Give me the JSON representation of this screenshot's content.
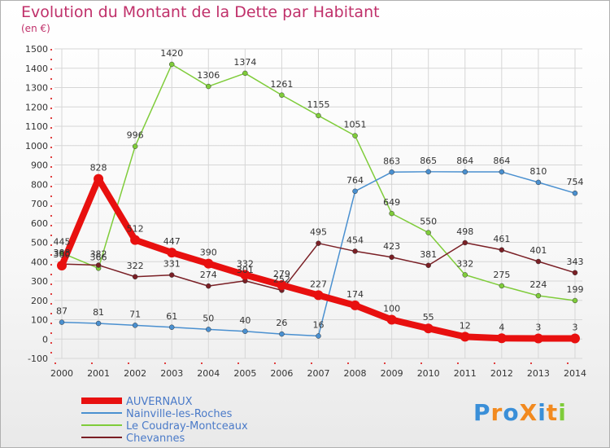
{
  "chart_data": {
    "type": "line",
    "title": "Evolution du Montant de la Dette par Habitant",
    "unit_label": "(en €)",
    "x": [
      "2000",
      "2001",
      "2002",
      "2003",
      "2004",
      "2005",
      "2006",
      "2007",
      "2008",
      "2009",
      "2010",
      "2011",
      "2012",
      "2013",
      "2014"
    ],
    "ylim": [
      -100,
      1500
    ],
    "yticks": [
      "-100",
      "0",
      "100",
      "200",
      "300",
      "400",
      "500",
      "600",
      "700",
      "800",
      "900",
      "1000",
      "1100",
      "1200",
      "1300",
      "1400",
      "1500"
    ],
    "grid": true,
    "legend_placement": "bottom-left",
    "series": [
      {
        "name": "AUVERNAUX",
        "color": "#e8100f",
        "values": [
          380,
          828,
          512,
          447,
          390,
          332,
          279,
          227,
          174,
          100,
          55,
          12,
          4,
          3,
          3
        ],
        "labels": [
          "380",
          "828",
          "512",
          "447",
          "390",
          "332",
          "279",
          "227",
          "174",
          "100",
          "55",
          "12",
          "4",
          "3",
          "3"
        ]
      },
      {
        "name": "Nainville-les-Roches",
        "color": "#4a90d0",
        "values": [
          87,
          81,
          71,
          61,
          50,
          40,
          26,
          16,
          764,
          863,
          865,
          864,
          864,
          810,
          754
        ],
        "labels": [
          "87",
          "81",
          "71",
          "61",
          "50",
          "40",
          "26",
          "16",
          "764",
          "863",
          "865",
          "864",
          "864",
          "810",
          "754"
        ]
      },
      {
        "name": "Le Coudray-Montceaux",
        "color": "#7fcc3a",
        "values": [
          445,
          366,
          996,
          1420,
          1306,
          1374,
          1261,
          1155,
          1051,
          649,
          550,
          332,
          275,
          224,
          199
        ],
        "labels": [
          "445",
          "366",
          "996",
          "1420",
          "1306",
          "1374",
          "1261",
          "1155",
          "1051",
          "649",
          "550",
          "332",
          "275",
          "224",
          "199"
        ]
      },
      {
        "name": "Chevannes",
        "color": "#7a1f25",
        "values": [
          388,
          382,
          322,
          331,
          274,
          301,
          252,
          495,
          454,
          423,
          381,
          498,
          461,
          401,
          343
        ],
        "labels": [
          "388",
          "382",
          "322",
          "331",
          "274",
          "301",
          "252",
          "495",
          "454",
          "423",
          "381",
          "498",
          "461",
          "401",
          "343"
        ]
      }
    ]
  },
  "logo": {
    "text": "ProXiti",
    "letter_colors": [
      "#3a8fd8",
      "#f28a1f",
      "#3a8fd8",
      "#f28a1f",
      "#3a8fd8",
      "#f28a1f",
      "#7fcc3a"
    ]
  }
}
